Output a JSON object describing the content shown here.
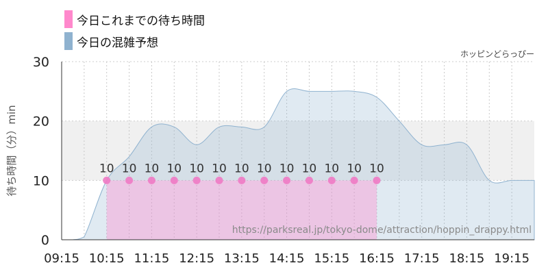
{
  "legend": {
    "items": [
      {
        "label": "今日これまでの待ち時間",
        "color": "#ff88cc"
      },
      {
        "label": "今日の混雑予想",
        "color": "#8fb2cf"
      }
    ]
  },
  "attraction": "ホッピンどらっぴー",
  "watermark": "https://parksreal.jp/tokyo-dome/attraction/hoppin_drappy.html",
  "chart_data": {
    "type": "area",
    "ylabel": "待ち時間（分）min",
    "xlabel": "",
    "ylim": [
      0,
      30
    ],
    "yticks": [
      0,
      10,
      20,
      30
    ],
    "xlim": [
      "09:15",
      "19:45"
    ],
    "xticks": [
      "09:15",
      "10:15",
      "11:15",
      "12:15",
      "13:15",
      "14:15",
      "15:15",
      "16:15",
      "17:15",
      "18:15",
      "19:15"
    ],
    "shaded_band": [
      10,
      20
    ],
    "grid": true,
    "legend_position": "top-left",
    "series": [
      {
        "name": "今日これまでの待ち時間",
        "type": "area-points",
        "color": "#ff88cc",
        "labels_shown": true,
        "points": [
          {
            "x": "10:15",
            "y": 10
          },
          {
            "x": "10:45",
            "y": 10
          },
          {
            "x": "11:15",
            "y": 10
          },
          {
            "x": "11:45",
            "y": 10
          },
          {
            "x": "12:15",
            "y": 10
          },
          {
            "x": "12:45",
            "y": 10
          },
          {
            "x": "13:15",
            "y": 10
          },
          {
            "x": "13:45",
            "y": 10
          },
          {
            "x": "14:15",
            "y": 10
          },
          {
            "x": "14:45",
            "y": 10
          },
          {
            "x": "15:15",
            "y": 10
          },
          {
            "x": "15:45",
            "y": 10
          },
          {
            "x": "16:15",
            "y": 10
          }
        ]
      },
      {
        "name": "今日の混雑予想",
        "type": "area",
        "color": "#8fb2cf",
        "points": [
          {
            "x": "09:15",
            "y": 0
          },
          {
            "x": "09:30",
            "y": 0
          },
          {
            "x": "09:45",
            "y": 0.5
          },
          {
            "x": "10:15",
            "y": 10
          },
          {
            "x": "10:45",
            "y": 14
          },
          {
            "x": "11:15",
            "y": 19
          },
          {
            "x": "11:45",
            "y": 19
          },
          {
            "x": "12:15",
            "y": 16
          },
          {
            "x": "12:45",
            "y": 19
          },
          {
            "x": "13:15",
            "y": 19
          },
          {
            "x": "13:45",
            "y": 19
          },
          {
            "x": "14:15",
            "y": 25
          },
          {
            "x": "14:45",
            "y": 25
          },
          {
            "x": "15:15",
            "y": 25
          },
          {
            "x": "15:45",
            "y": 25
          },
          {
            "x": "16:15",
            "y": 24
          },
          {
            "x": "16:45",
            "y": 20
          },
          {
            "x": "17:15",
            "y": 16
          },
          {
            "x": "17:45",
            "y": 16
          },
          {
            "x": "18:15",
            "y": 16
          },
          {
            "x": "18:45",
            "y": 10
          },
          {
            "x": "19:15",
            "y": 10
          },
          {
            "x": "19:45",
            "y": 10
          }
        ]
      }
    ]
  }
}
